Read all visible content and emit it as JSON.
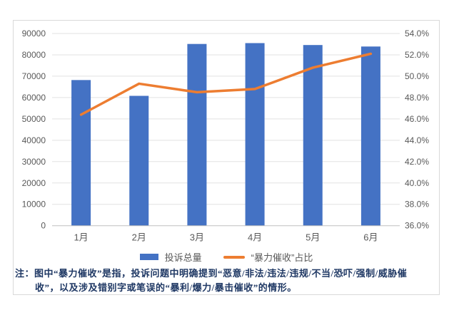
{
  "colors": {
    "bar": "#4472C4",
    "line": "#ED7D31",
    "axis_label": "#595959",
    "gridline": "#E2E2E2",
    "axis_line": "#BFBFBF",
    "frame_border": "#D9D9D9",
    "note_text": "#1F3864"
  },
  "legend": {
    "bar_label": "投诉总量",
    "line_label": "“暴力催收”占比"
  },
  "note": {
    "line1": "注：图中“暴力催收”是指，投诉问题中明确提到“恶意/非法/违法/违规/不当/恐吓/强制/威胁催",
    "line2": "收”，以及涉及错别字或笔误的“暴利/爆力/暴击催收”的情形。"
  },
  "chart_data": {
    "type": "bar",
    "subtype": "combo_bar_line_dual_axis",
    "categories": [
      "1月",
      "2月",
      "3月",
      "4月",
      "5月",
      "6月"
    ],
    "series": [
      {
        "name": "投诉总量",
        "type": "bar",
        "axis": "left",
        "values": [
          68200,
          60800,
          85100,
          85500,
          84600,
          83900
        ]
      },
      {
        "name": "“暴力催收”占比",
        "type": "line",
        "axis": "right",
        "values": [
          46.4,
          49.3,
          48.5,
          48.8,
          50.8,
          52.1
        ],
        "unit": "%"
      }
    ],
    "left_axis": {
      "min": 0,
      "max": 90000,
      "step": 10000,
      "tick_labels": [
        "0",
        "10000",
        "20000",
        "30000",
        "40000",
        "50000",
        "60000",
        "70000",
        "80000",
        "90000"
      ]
    },
    "right_axis": {
      "min": 36,
      "max": 54,
      "step": 2,
      "unit": "%",
      "tick_labels": [
        "36.0%",
        "38.0%",
        "40.0%",
        "42.0%",
        "44.0%",
        "46.0%",
        "48.0%",
        "50.0%",
        "52.0%",
        "54.0%"
      ]
    },
    "grid": true,
    "legend_position": "bottom"
  }
}
